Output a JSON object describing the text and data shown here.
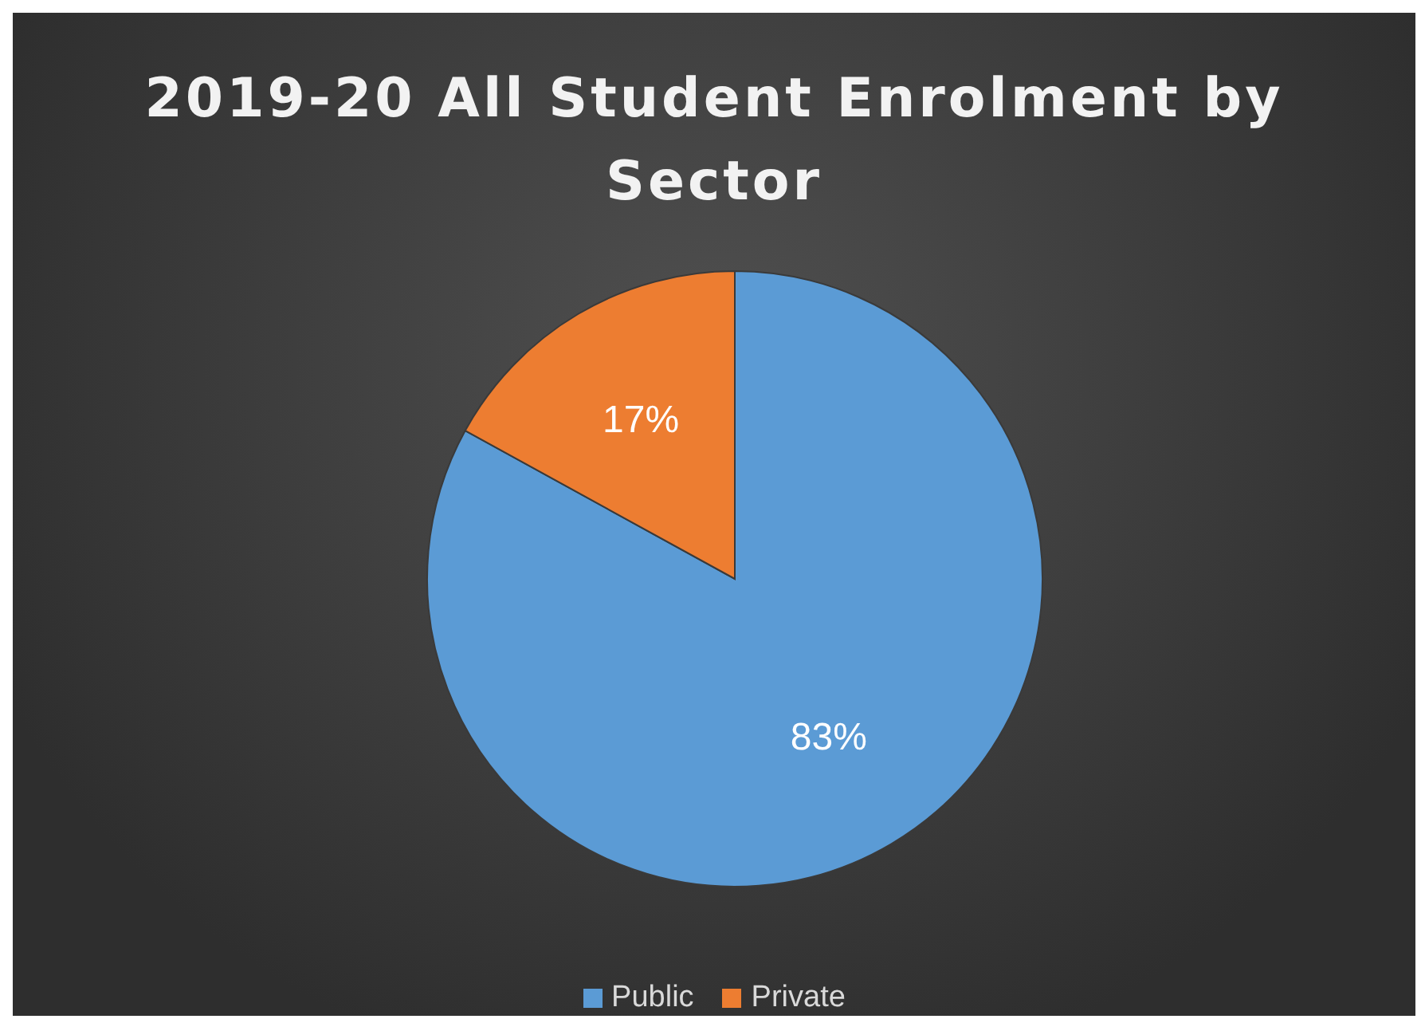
{
  "chart_data": {
    "type": "pie",
    "title": "2019-20 All Student Enrolment by Sector",
    "categories": [
      "Public",
      "Private"
    ],
    "values": [
      83,
      17
    ],
    "value_labels": [
      "83%",
      "17%"
    ],
    "colors": [
      "#5b9bd5",
      "#ed7d31"
    ],
    "legend": "bottom"
  }
}
